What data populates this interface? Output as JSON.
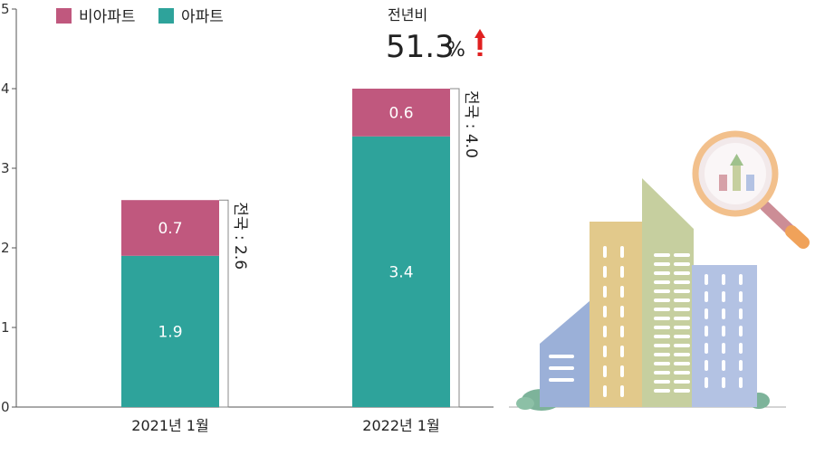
{
  "legend": [
    {
      "label": "비아파트",
      "color": "#c0587e"
    },
    {
      "label": "아파트",
      "color": "#2ea39b"
    }
  ],
  "yoy": {
    "caption": "전년비",
    "value": "51.3",
    "unit": "%",
    "arrow_color": "#e02020"
  },
  "totals": [
    "전국 : 2.6",
    "전국 : 4.0"
  ],
  "illustration": {
    "name": "city-buildings-with-magnifier-illustration"
  },
  "chart_data": {
    "type": "bar",
    "stacked": true,
    "categories": [
      "2021년 1월",
      "2022년 1월"
    ],
    "series": [
      {
        "name": "아파트",
        "values": [
          1.9,
          3.4
        ],
        "color": "#2ea39b"
      },
      {
        "name": "비아파트",
        "values": [
          0.7,
          0.6
        ],
        "color": "#c0587e"
      }
    ],
    "ylim": [
      0,
      5
    ],
    "yticks": [
      0,
      1,
      2,
      3,
      4,
      5
    ],
    "totals": [
      2.6,
      4.0
    ],
    "legend_position": "top-left"
  }
}
